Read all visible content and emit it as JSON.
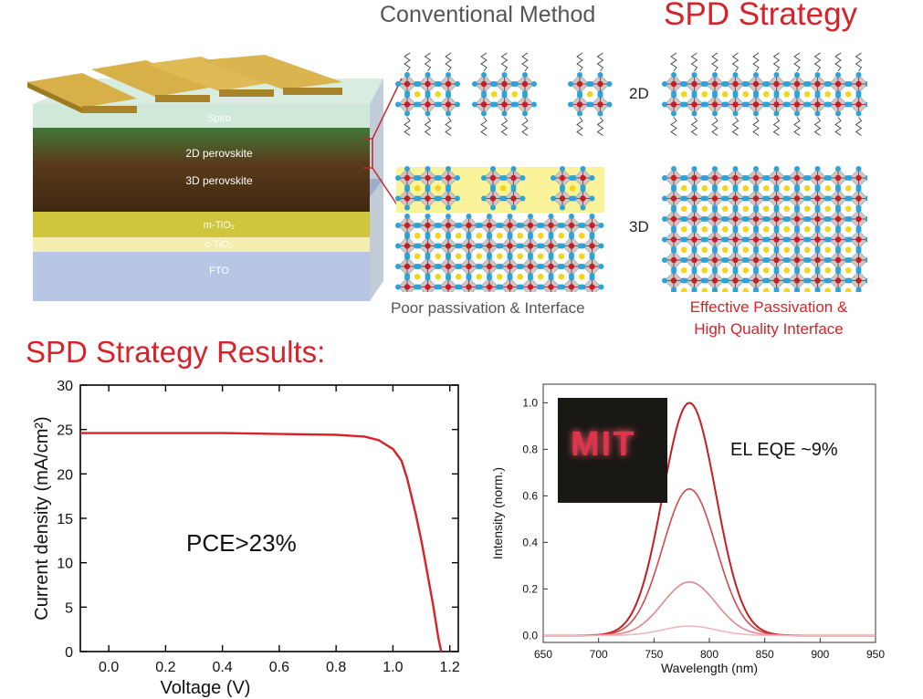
{
  "headings": {
    "conventional": "Conventional Method",
    "spd": "SPD Strategy",
    "results": "SPD Strategy Results:"
  },
  "device_stack": {
    "layers": [
      "Spiro",
      "2D perovskite",
      "3D perovskite",
      "m-TiO₂",
      "c-TiO₂",
      "FTO"
    ]
  },
  "structure_labels": {
    "two_d": "2D",
    "three_d": "3D"
  },
  "captions": {
    "conventional": "Poor passivation & Interface",
    "spd_line1": "Effective Passivation &",
    "spd_line2": "High Quality Interface"
  },
  "chart_data": [
    {
      "type": "line",
      "xlabel": "Voltage (V)",
      "ylabel": "Current density (mA/cm²)",
      "xlim": [
        -0.1,
        1.23
      ],
      "ylim": [
        0,
        30
      ],
      "xticks": [
        "0.0",
        "0.2",
        "0.4",
        "0.6",
        "0.8",
        "1.0",
        "1.2"
      ],
      "yticks": [
        "0",
        "5",
        "10",
        "15",
        "20",
        "25",
        "30"
      ],
      "annotation": "PCE>23%",
      "color": "#d7222a",
      "series": [
        {
          "x": [
            -0.1,
            0.0,
            0.2,
            0.4,
            0.6,
            0.8,
            0.9,
            0.95,
            1.0,
            1.03,
            1.05,
            1.08,
            1.1,
            1.12,
            1.14,
            1.16,
            1.17
          ],
          "y": [
            24.6,
            24.6,
            24.6,
            24.6,
            24.5,
            24.4,
            24.2,
            23.8,
            22.8,
            21.5,
            19.5,
            15.5,
            12.5,
            9.0,
            5.5,
            1.5,
            0.0
          ]
        }
      ]
    },
    {
      "type": "line",
      "xlabel": "Wavelength (nm)",
      "ylabel": "Intensity (norm.)",
      "xlim": [
        650,
        950
      ],
      "ylim": [
        -0.03,
        1.08
      ],
      "xticks": [
        "650",
        "700",
        "750",
        "800",
        "850",
        "900",
        "950"
      ],
      "yticks": [
        "0.0",
        "0.2",
        "0.4",
        "0.6",
        "0.8",
        "1.0"
      ],
      "annotation": "EL EQE ~9%",
      "inset_text": "MIT",
      "peak_nm": 782,
      "peaks": [
        1.0,
        0.63,
        0.23,
        0.04
      ],
      "colors": [
        "#c41e25",
        "#cf4a4f",
        "#e0878a",
        "#efb8ba"
      ]
    }
  ]
}
